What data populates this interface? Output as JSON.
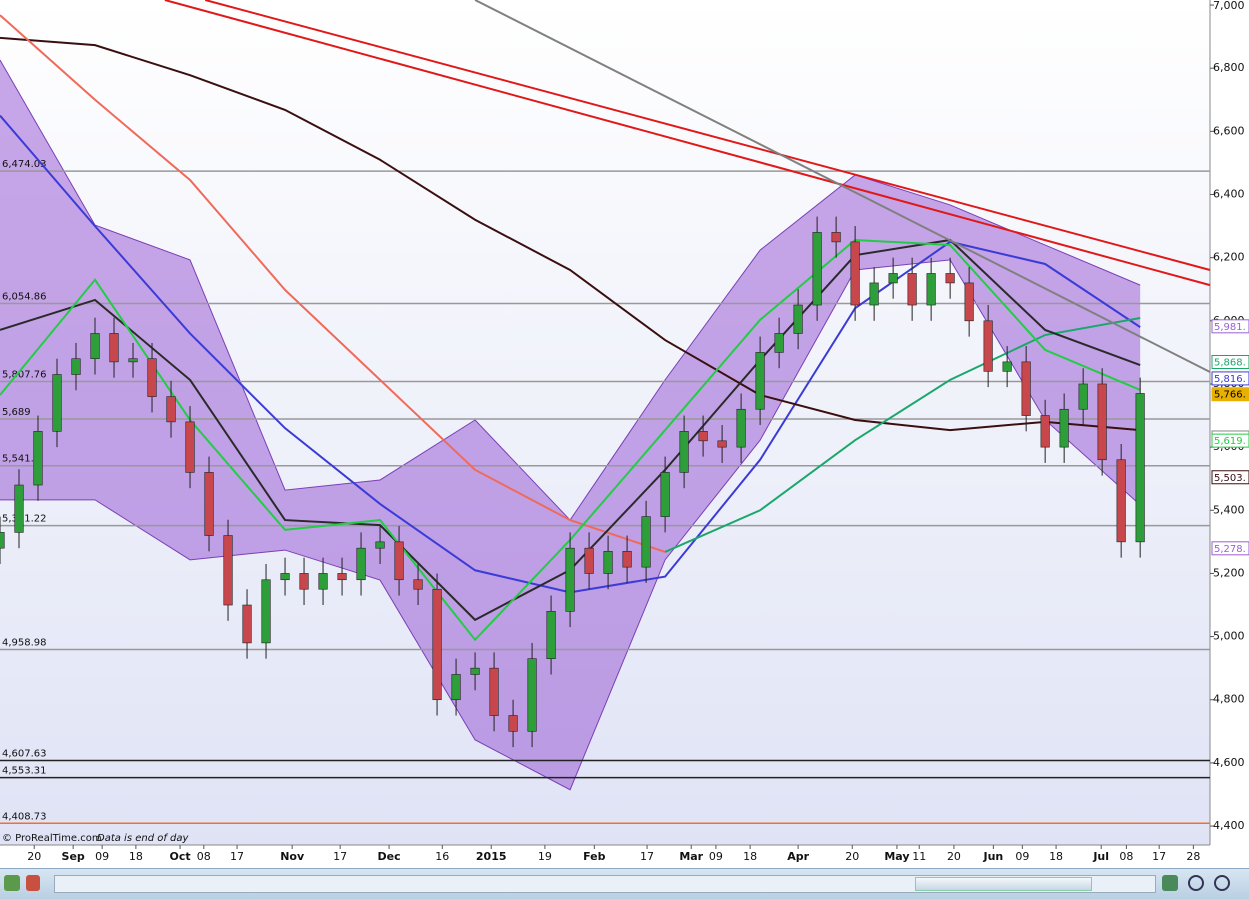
{
  "chart_data": {
    "type": "candlestick",
    "source": "© ProRealTime.com",
    "note": "Data is end of day",
    "xlim": [
      0,
      254.7
    ],
    "ylim": [
      4340,
      7016
    ],
    "xticks": [
      {
        "value": 7.2,
        "label": "20"
      },
      {
        "value": 15.4,
        "label": "Sep"
      },
      {
        "value": 21.5,
        "label": "09"
      },
      {
        "value": 28.6,
        "label": "18"
      },
      {
        "value": 37.9,
        "label": "Oct"
      },
      {
        "value": 42.9,
        "label": "08"
      },
      {
        "value": 49.9,
        "label": "17"
      },
      {
        "value": 61.5,
        "label": "Nov"
      },
      {
        "value": 71.6,
        "label": "17"
      },
      {
        "value": 81.9,
        "label": "Dec"
      },
      {
        "value": 93.1,
        "label": "16"
      },
      {
        "value": 103.4,
        "label": "2015"
      },
      {
        "value": 114.7,
        "label": "19"
      },
      {
        "value": 125.1,
        "label": "Feb"
      },
      {
        "value": 136.2,
        "label": "17"
      },
      {
        "value": 145.5,
        "label": "Mar"
      },
      {
        "value": 150.7,
        "label": "09"
      },
      {
        "value": 157.9,
        "label": "18"
      },
      {
        "value": 168,
        "label": "Apr"
      },
      {
        "value": 179.4,
        "label": "20"
      },
      {
        "value": 188.8,
        "label": "May"
      },
      {
        "value": 193.5,
        "label": "11"
      },
      {
        "value": 200.8,
        "label": "20"
      },
      {
        "value": 209.1,
        "label": "Jun"
      },
      {
        "value": 215.2,
        "label": "09"
      },
      {
        "value": 222.3,
        "label": "18"
      },
      {
        "value": 231.8,
        "label": "Jul"
      },
      {
        "value": 237.1,
        "label": "08"
      },
      {
        "value": 244,
        "label": "17"
      },
      {
        "value": 251.2,
        "label": "28"
      }
    ],
    "yticks": [
      {
        "value": 4400,
        "label": "4,400"
      },
      {
        "value": 4600,
        "label": "4,600"
      },
      {
        "value": 4800,
        "label": "4,800"
      },
      {
        "value": 5000,
        "label": "5,000"
      },
      {
        "value": 5200,
        "label": "5,200"
      },
      {
        "value": 5400,
        "label": "5,400"
      },
      {
        "value": 5600,
        "label": "5,600"
      },
      {
        "value": 5800,
        "label": "5,800"
      },
      {
        "value": 6000,
        "label": "6,000"
      },
      {
        "value": 6200,
        "label": "6,200"
      },
      {
        "value": 6400,
        "label": "6,400"
      },
      {
        "value": 6600,
        "label": "6,600"
      },
      {
        "value": 6800,
        "label": "6,800"
      },
      {
        "value": 7000,
        "label": "7,000"
      }
    ],
    "up_color": "#2e9e3a",
    "down_color": "#c8474c",
    "x": [
      0,
      4,
      8,
      12,
      16,
      20,
      24,
      28,
      32,
      36,
      40,
      44,
      48,
      52,
      56,
      60,
      64,
      68,
      72,
      76,
      80,
      84,
      88,
      92,
      96,
      100,
      104,
      108,
      112,
      116,
      120,
      124,
      128,
      132,
      136,
      140,
      144,
      148,
      152,
      156,
      160,
      164,
      168,
      172,
      176,
      180,
      184,
      188,
      192,
      196,
      200,
      204,
      208,
      212,
      216,
      220,
      224,
      228,
      232,
      236,
      240
    ],
    "open": [
      5280,
      5330,
      5480,
      5650,
      5830,
      5880,
      5960,
      5870,
      5880,
      5760,
      5680,
      5520,
      5320,
      5100,
      4980,
      5180,
      5200,
      5150,
      5200,
      5180,
      5280,
      5300,
      5180,
      5150,
      4800,
      4880,
      4900,
      4750,
      4700,
      4930,
      5080,
      5280,
      5200,
      5270,
      5220,
      5380,
      5520,
      5650,
      5620,
      5600,
      5720,
      5900,
      5960,
      6050,
      6280,
      6250,
      6050,
      6120,
      6150,
      6050,
      6150,
      6120,
      6000,
      5840,
      5870,
      5700,
      5600,
      5720,
      5800,
      5560,
      5300
    ],
    "high": [
      5380,
      5530,
      5700,
      5880,
      5930,
      6010,
      6010,
      5930,
      5930,
      5810,
      5730,
      5570,
      5370,
      5150,
      5230,
      5250,
      5250,
      5250,
      5250,
      5330,
      5350,
      5350,
      5230,
      5200,
      4930,
      4950,
      4950,
      4800,
      4980,
      5130,
      5330,
      5330,
      5320,
      5320,
      5430,
      5570,
      5700,
      5700,
      5670,
      5770,
      5950,
      6010,
      6100,
      6330,
      6330,
      6300,
      6170,
      6200,
      6200,
      6200,
      6200,
      6170,
      6050,
      5920,
      5920,
      5750,
      5770,
      5850,
      5850,
      5610,
      5820
    ],
    "low": [
      5230,
      5280,
      5430,
      5600,
      5780,
      5830,
      5820,
      5820,
      5710,
      5630,
      5470,
      5270,
      5050,
      4930,
      4930,
      5130,
      5100,
      5100,
      5130,
      5130,
      5230,
      5130,
      5100,
      4750,
      4750,
      4830,
      4700,
      4650,
      4650,
      4880,
      5030,
      5150,
      5150,
      5170,
      5170,
      5330,
      5470,
      5570,
      5550,
      5550,
      5670,
      5850,
      5910,
      6000,
      6200,
      6000,
      6000,
      6070,
      6000,
      6000,
      6070,
      5950,
      5790,
      5790,
      5650,
      5550,
      5550,
      5670,
      5510,
      5250,
      5250
    ],
    "close": [
      5330,
      5480,
      5650,
      5830,
      5880,
      5960,
      5870,
      5880,
      5760,
      5680,
      5520,
      5320,
      5100,
      4980,
      5180,
      5200,
      5150,
      5200,
      5180,
      5280,
      5300,
      5180,
      5150,
      4800,
      4880,
      4900,
      4750,
      4700,
      4930,
      5080,
      5280,
      5200,
      5270,
      5220,
      5380,
      5520,
      5650,
      5620,
      5600,
      5720,
      5900,
      5960,
      6050,
      6280,
      6250,
      6050,
      6120,
      6150,
      6050,
      6150,
      6120,
      6000,
      5840,
      5870,
      5700,
      5600,
      5720,
      5800,
      5560,
      5300,
      5770
    ],
    "band": {
      "color": "#9a5fd6",
      "x": [
        0,
        20,
        40,
        60,
        80,
        100,
        120,
        140,
        160,
        180,
        200,
        220,
        240
      ],
      "upper": [
        6826,
        6303,
        6193,
        5464,
        5496,
        5686,
        5369,
        5813,
        6224,
        6462,
        6367,
        6240,
        6113
      ],
      "lower": [
        5433,
        5433,
        5243,
        5274,
        5179,
        4673,
        4515,
        5243,
        5622,
        6161,
        6193,
        5686,
        5417
      ]
    },
    "overlays": [
      {
        "color": "#3b3bd6",
        "x": [
          0,
          20,
          40,
          60,
          80,
          100,
          120,
          140,
          160,
          180,
          200,
          220,
          240
        ],
        "values": [
          6650,
          6300,
          5960,
          5660,
          5420,
          5210,
          5140,
          5190,
          5560,
          6040,
          6250,
          6180,
          5980
        ]
      },
      {
        "color": "#3a0f0f",
        "x": [
          0,
          20,
          40,
          60,
          80,
          100,
          120,
          140,
          160,
          180,
          200,
          220,
          240
        ],
        "values": [
          6896,
          6873,
          6778,
          6668,
          6510,
          6320,
          6161,
          5939,
          5765,
          5686,
          5654,
          5680,
          5654
        ]
      },
      {
        "color": "#f06a5a",
        "x": [
          0,
          20,
          40,
          60,
          80,
          100,
          120,
          140,
          160,
          180,
          200,
          220,
          240
        ],
        "values": [
          6968,
          6700,
          6446,
          6098,
          5813,
          5528,
          5369,
          5268,
          null,
          null,
          null,
          null,
          null
        ]
      },
      {
        "color": "#1aa86a",
        "x": [
          0,
          20,
          40,
          60,
          80,
          100,
          120,
          140,
          160,
          180,
          200,
          220,
          240
        ],
        "values": [
          null,
          null,
          null,
          null,
          null,
          null,
          null,
          5268,
          5400,
          5622,
          5813,
          5955,
          6009
        ]
      },
      {
        "color": "#2a2a2a",
        "x": [
          0,
          20,
          40,
          60,
          80,
          100,
          120,
          140,
          160,
          180,
          200,
          220,
          240
        ],
        "values": [
          5971,
          6066,
          5813,
          5369,
          5353,
          5053,
          5211,
          5528,
          5876,
          6208,
          6256,
          5971,
          5860
        ]
      },
      {
        "color": "#22cc44",
        "x": [
          0,
          20,
          40,
          60,
          80,
          100,
          120,
          140,
          160,
          180,
          200,
          220,
          240
        ],
        "values": [
          5765,
          6130,
          5686,
          5338,
          5369,
          4990,
          5306,
          5654,
          6003,
          6256,
          6240,
          5908,
          5781
        ]
      }
    ],
    "trendlines": [
      {
        "color": "#e01818",
        "x": [
          34.7,
          254.7
        ],
        "values": [
          7016,
          6113
        ]
      },
      {
        "color": "#e01818",
        "x": [
          43.2,
          254.7
        ],
        "values": [
          7016,
          6161
        ]
      },
      {
        "color": "#808080",
        "x": [
          100,
          254.7
        ],
        "values": [
          7016,
          5838
        ]
      }
    ],
    "levels": [
      {
        "value": 6474.03,
        "label": "6,474.03",
        "color": "#999999"
      },
      {
        "value": 6054.86,
        "label": "6,054.86",
        "color": "#999999"
      },
      {
        "value": 5807.76,
        "label": "5,807.76",
        "color": "#999999"
      },
      {
        "value": 5689,
        "label": "5,689",
        "color": "#999999"
      },
      {
        "value": 5541.1,
        "label": "5,541.1",
        "color": "#999999"
      },
      {
        "value": 5351.22,
        "label": "5,351.22",
        "color": "#999999"
      },
      {
        "value": 4958.98,
        "label": "4,958.98",
        "color": "#999999"
      },
      {
        "value": 4607.63,
        "label": "4,607.63",
        "color": "#222222"
      },
      {
        "value": 4553.31,
        "label": "4,553.31",
        "color": "#222222"
      },
      {
        "value": 4408.73,
        "label": "4,408.73",
        "color": "#f07030"
      }
    ],
    "price_tags": [
      {
        "value": 5981,
        "label": "5,981.",
        "color": "#9a5fd6"
      },
      {
        "value": 5868,
        "label": "5,868.",
        "color": "#1aa86a"
      },
      {
        "value": 5816,
        "label": "5,816.",
        "color": "#3b3bd6"
      },
      {
        "value": 5766,
        "label": "5,766.",
        "color": "#e8b000"
      },
      {
        "value": 5629,
        "label": "5,629.",
        "color": "#888888"
      },
      {
        "value": 5619,
        "label": "5,619.",
        "color": "#22cc44"
      },
      {
        "value": 5503,
        "label": "5,503.",
        "color": "#3a0f0f"
      },
      {
        "value": 5278,
        "label": "5,278.",
        "color": "#9a5fd6"
      }
    ]
  }
}
